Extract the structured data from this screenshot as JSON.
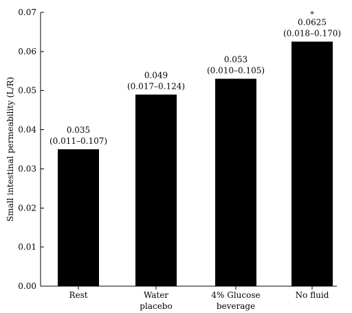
{
  "chart_data": {
    "type": "bar",
    "ylabel": "Small intestinal permeability (L/R)",
    "ylim": [
      0,
      0.07
    ],
    "yticks": [
      "0.00",
      "0.01",
      "0.02",
      "0.03",
      "0.04",
      "0.05",
      "0.06",
      "0.07"
    ],
    "categories": [
      [
        "Rest"
      ],
      [
        "Water",
        "placebo"
      ],
      [
        "4% Glucose",
        "beverage"
      ],
      [
        "No fluid"
      ]
    ],
    "values": [
      0.035,
      0.049,
      0.053,
      0.0625
    ],
    "value_labels": [
      "0.035",
      "0.049",
      "0.053",
      "0.0625"
    ],
    "ci_labels": [
      "(0.011–0.107)",
      "(0.017–0.124)",
      "(0.010–0.105)",
      "(0.018–0.170)"
    ],
    "significance": [
      "",
      "",
      "",
      "*"
    ],
    "colors": {
      "bar": "#000000",
      "axis": "#000000",
      "background": "#ffffff"
    }
  }
}
